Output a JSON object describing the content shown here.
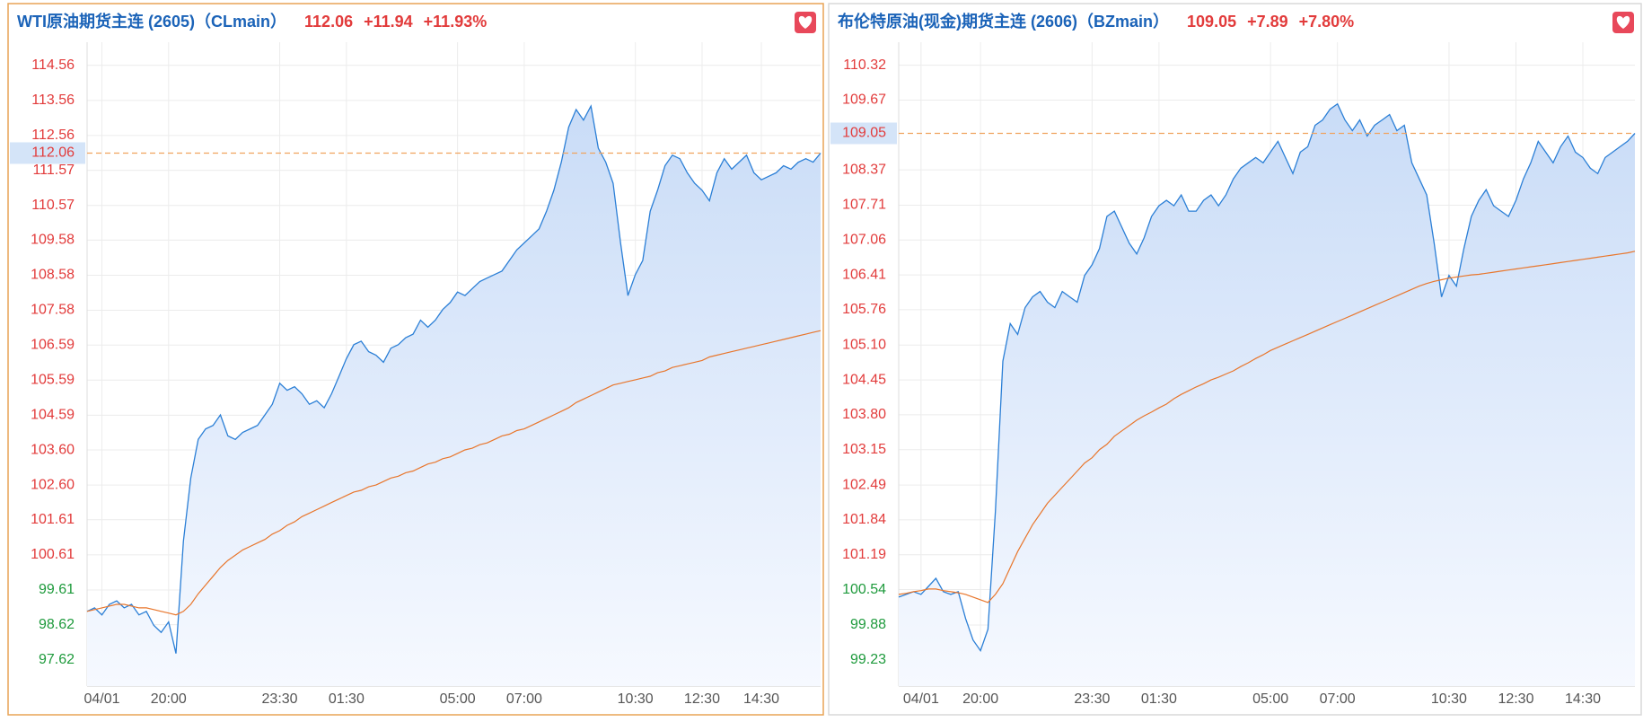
{
  "chart_data": [
    {
      "type": "line",
      "title": "WTI原油期货主连 (2605)（CLmain）",
      "price": 112.06,
      "change": {
        "value": 11.94,
        "label": "+11.94"
      },
      "change_pct": {
        "value": 11.93,
        "label": "+11.93%"
      },
      "up_color": "#e23b3b",
      "down_color": "#1e9a3c",
      "categories": [
        null,
        null,
        "04/01",
        null,
        null,
        null,
        null,
        null,
        null,
        null,
        null,
        "20:00",
        null,
        null,
        null,
        null,
        null,
        null,
        null,
        null,
        null,
        null,
        null,
        null,
        null,
        null,
        "23:30",
        null,
        null,
        null,
        null,
        null,
        null,
        null,
        null,
        "01:30",
        null,
        null,
        null,
        null,
        null,
        null,
        null,
        null,
        null,
        null,
        null,
        null,
        null,
        null,
        "05:00",
        null,
        null,
        null,
        null,
        null,
        null,
        null,
        null,
        "07:00",
        null,
        null,
        null,
        null,
        null,
        null,
        null,
        null,
        null,
        null,
        null,
        null,
        null,
        null,
        "10:30",
        null,
        null,
        null,
        null,
        null,
        null,
        null,
        null,
        "12:30",
        null,
        null,
        null,
        null,
        null,
        null,
        null,
        "14:30",
        null,
        null,
        null,
        null,
        null,
        null,
        null,
        null
      ],
      "series": [
        {
          "color": "#2b7fd6",
          "values": [
            99.0,
            99.1,
            98.9,
            99.2,
            99.3,
            99.1,
            99.2,
            98.9,
            99.0,
            98.6,
            98.4,
            98.7,
            97.8,
            101.0,
            102.8,
            103.9,
            104.2,
            104.3,
            104.6,
            104.0,
            103.9,
            104.1,
            104.2,
            104.3,
            104.6,
            104.9,
            105.5,
            105.3,
            105.4,
            105.2,
            104.9,
            105.0,
            104.8,
            105.2,
            105.7,
            106.2,
            106.6,
            106.7,
            106.4,
            106.3,
            106.1,
            106.5,
            106.6,
            106.8,
            106.9,
            107.3,
            107.1,
            107.3,
            107.6,
            107.8,
            108.1,
            108.0,
            108.2,
            108.4,
            108.5,
            108.6,
            108.7,
            109.0,
            109.3,
            109.5,
            109.7,
            109.9,
            110.4,
            111.0,
            111.8,
            112.8,
            113.3,
            113.0,
            113.4,
            112.2,
            111.8,
            111.2,
            109.5,
            108.0,
            108.6,
            109.0,
            110.4,
            111.0,
            111.7,
            112.0,
            111.9,
            111.5,
            111.2,
            111.0,
            110.7,
            111.5,
            111.9,
            111.6,
            111.8,
            112.0,
            111.5,
            111.3,
            111.4,
            111.5,
            111.7,
            111.6,
            111.8,
            111.9,
            111.8,
            112.06
          ]
        },
        {
          "color": "#e8762c",
          "values": [
            99.0,
            99.05,
            99.1,
            99.15,
            99.2,
            99.2,
            99.15,
            99.1,
            99.1,
            99.05,
            99.0,
            98.95,
            98.9,
            99.0,
            99.2,
            99.5,
            99.75,
            100.0,
            100.25,
            100.45,
            100.6,
            100.75,
            100.85,
            100.95,
            101.05,
            101.2,
            101.3,
            101.45,
            101.55,
            101.7,
            101.8,
            101.9,
            102.0,
            102.1,
            102.2,
            102.3,
            102.4,
            102.45,
            102.55,
            102.6,
            102.7,
            102.8,
            102.85,
            102.95,
            103.0,
            103.1,
            103.2,
            103.25,
            103.35,
            103.4,
            103.5,
            103.6,
            103.65,
            103.75,
            103.8,
            103.9,
            104.0,
            104.05,
            104.15,
            104.2,
            104.3,
            104.4,
            104.5,
            104.6,
            104.7,
            104.8,
            104.95,
            105.05,
            105.15,
            105.25,
            105.35,
            105.45,
            105.5,
            105.55,
            105.6,
            105.65,
            105.7,
            105.8,
            105.85,
            105.95,
            106.0,
            106.05,
            106.1,
            106.15,
            106.25,
            106.3,
            106.35,
            106.4,
            106.45,
            106.5,
            106.55,
            106.6,
            106.65,
            106.7,
            106.75,
            106.8,
            106.85,
            106.9,
            106.95,
            107.0
          ]
        }
      ],
      "ylim": [
        96.87,
        115.22
      ],
      "yticks": [
        97.62,
        98.62,
        99.61,
        100.61,
        101.61,
        {
          "value": 102.6,
          "label": "102.60"
        },
        {
          "value": 103.6,
          "label": "103.60"
        },
        104.59,
        105.59,
        106.59,
        107.58,
        108.58,
        109.58,
        110.57,
        111.57,
        112.56,
        113.56,
        114.56
      ],
      "grid": true
    },
    {
      "type": "line",
      "title": "布伦特原油(现金)期货主连 (2606)（BZmain）",
      "price": 109.05,
      "change": {
        "value": 7.89,
        "label": "+7.89"
      },
      "change_pct": {
        "value": 7.8,
        "label": "+7.80%"
      },
      "up_color": "#e23b3b",
      "down_color": "#1e9a3c",
      "categories": [
        null,
        null,
        null,
        "04/01",
        null,
        null,
        null,
        null,
        null,
        null,
        null,
        "20:00",
        null,
        null,
        null,
        null,
        null,
        null,
        null,
        null,
        null,
        null,
        null,
        null,
        null,
        null,
        "23:30",
        null,
        null,
        null,
        null,
        null,
        null,
        null,
        null,
        "01:30",
        null,
        null,
        null,
        null,
        null,
        null,
        null,
        null,
        null,
        null,
        null,
        null,
        null,
        null,
        "05:00",
        null,
        null,
        null,
        null,
        null,
        null,
        null,
        null,
        "07:00",
        null,
        null,
        null,
        null,
        null,
        null,
        null,
        null,
        null,
        null,
        null,
        null,
        null,
        null,
        "10:30",
        null,
        null,
        null,
        null,
        null,
        null,
        null,
        null,
        "12:30",
        null,
        null,
        null,
        null,
        null,
        null,
        null,
        null,
        "14:30",
        null,
        null,
        null,
        null,
        null,
        null,
        null
      ],
      "series": [
        {
          "color": "#2b7fd6",
          "values": [
            100.4,
            100.45,
            100.5,
            100.45,
            100.6,
            100.75,
            100.5,
            100.45,
            100.5,
            100.0,
            99.6,
            99.4,
            99.8,
            102.0,
            104.8,
            105.5,
            105.3,
            105.8,
            106.0,
            106.1,
            105.9,
            105.8,
            106.1,
            106.0,
            105.9,
            106.4,
            106.6,
            106.9,
            107.5,
            107.6,
            107.3,
            107.0,
            106.8,
            107.1,
            107.5,
            107.7,
            107.8,
            107.7,
            107.9,
            107.6,
            107.6,
            107.8,
            107.9,
            107.7,
            107.9,
            108.2,
            108.4,
            108.5,
            108.6,
            108.5,
            108.7,
            108.9,
            108.6,
            108.3,
            108.7,
            108.8,
            109.2,
            109.3,
            109.5,
            109.6,
            109.3,
            109.1,
            109.3,
            109.0,
            109.2,
            109.3,
            109.4,
            109.1,
            109.2,
            108.5,
            108.2,
            107.9,
            107.0,
            106.0,
            106.4,
            106.2,
            106.9,
            107.5,
            107.8,
            108.0,
            107.7,
            107.6,
            107.5,
            107.8,
            108.2,
            108.5,
            108.9,
            108.7,
            108.5,
            108.8,
            109.0,
            108.7,
            108.6,
            108.4,
            108.3,
            108.6,
            108.7,
            108.8,
            108.9,
            109.05
          ]
        },
        {
          "color": "#e8762c",
          "values": [
            100.45,
            100.47,
            100.5,
            100.52,
            100.55,
            100.55,
            100.52,
            100.5,
            100.48,
            100.45,
            100.4,
            100.35,
            100.3,
            100.45,
            100.65,
            100.95,
            101.25,
            101.5,
            101.75,
            101.95,
            102.15,
            102.3,
            102.45,
            102.6,
            102.75,
            102.9,
            103.0,
            103.15,
            103.25,
            103.4,
            103.5,
            103.6,
            103.7,
            103.78,
            103.85,
            103.93,
            104.0,
            104.1,
            104.18,
            104.25,
            104.32,
            104.38,
            104.45,
            104.5,
            104.56,
            104.62,
            104.7,
            104.77,
            104.85,
            104.92,
            105.0,
            105.06,
            105.12,
            105.18,
            105.24,
            105.3,
            105.36,
            105.42,
            105.48,
            105.54,
            105.6,
            105.66,
            105.72,
            105.78,
            105.84,
            105.9,
            105.96,
            106.02,
            106.08,
            106.14,
            106.2,
            106.25,
            106.29,
            106.32,
            106.35,
            106.37,
            106.39,
            106.41,
            106.42,
            106.44,
            106.46,
            106.48,
            106.5,
            106.52,
            106.54,
            106.56,
            106.58,
            106.6,
            106.62,
            106.64,
            106.66,
            106.68,
            106.7,
            106.72,
            106.74,
            106.76,
            106.78,
            106.8,
            106.82,
            106.85
          ]
        }
      ],
      "ylim": [
        98.74,
        110.75
      ],
      "yticks": [
        99.23,
        99.88,
        100.54,
        101.19,
        101.84,
        102.49,
        103.15,
        {
          "value": 103.8,
          "label": "103.80"
        },
        104.45,
        {
          "value": 105.1,
          "label": "105.10"
        },
        105.76,
        106.41,
        107.06,
        107.71,
        108.37,
        109.67,
        110.32
      ],
      "grid": true
    }
  ]
}
